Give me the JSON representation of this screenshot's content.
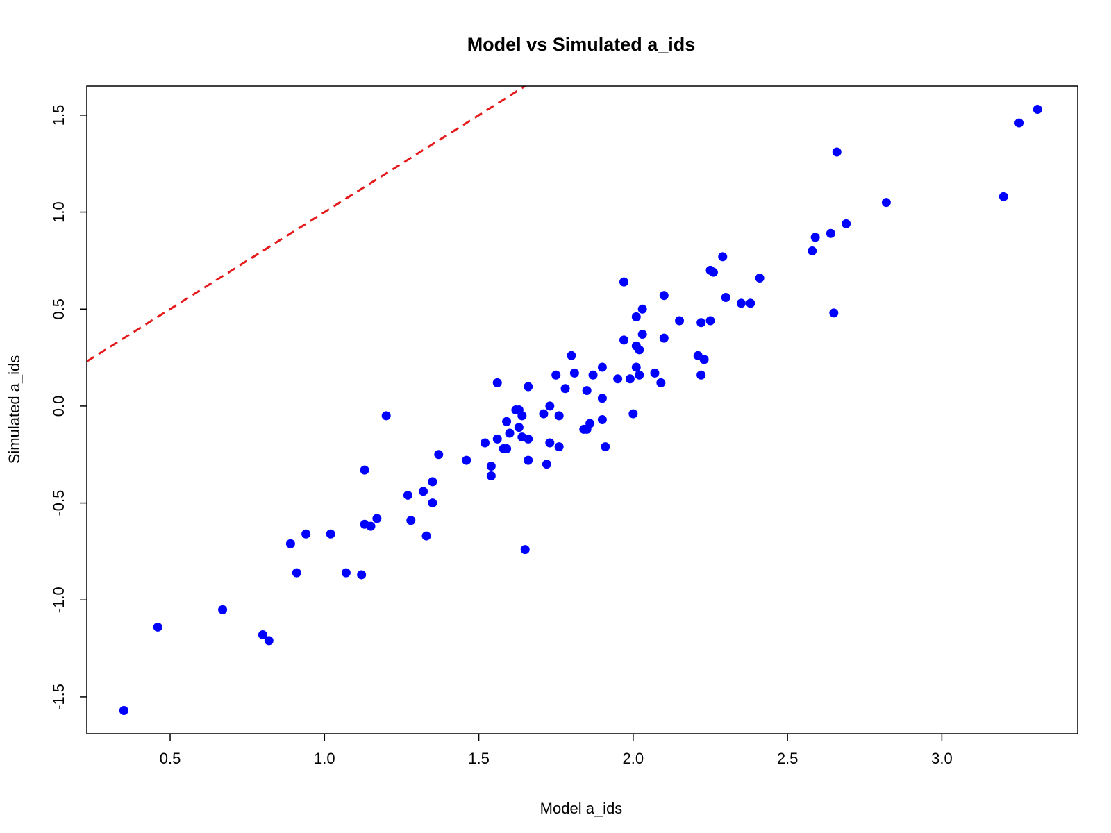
{
  "chart_data": {
    "type": "scatter",
    "title": "Model vs Simulated a_ids",
    "xlabel": "Model a_ids",
    "ylabel": "Simulated a_ids",
    "xlim": [
      0.23,
      3.44
    ],
    "ylim": [
      -1.69,
      1.65
    ],
    "xticks": [
      0.5,
      1.0,
      1.5,
      2.0,
      2.5,
      3.0
    ],
    "yticks": [
      -1.5,
      -1.0,
      -0.5,
      0.0,
      0.5,
      1.0,
      1.5
    ],
    "xtick_labels": [
      "0.5",
      "1.0",
      "1.5",
      "2.0",
      "2.5",
      "3.0"
    ],
    "ytick_labels": [
      "-1.5",
      "-1.0",
      "-0.5",
      "0.0",
      "0.5",
      "1.0",
      "1.5"
    ],
    "grid": false,
    "point_color": "#0000ff",
    "reference_line": {
      "type": "identity",
      "slope": 1,
      "intercept": 0,
      "color": "#e41a1c",
      "style": "dashed"
    },
    "points": [
      [
        0.35,
        -1.57
      ],
      [
        0.46,
        -1.14
      ],
      [
        0.67,
        -1.05
      ],
      [
        0.8,
        -1.18
      ],
      [
        0.82,
        -1.21
      ],
      [
        0.89,
        -0.71
      ],
      [
        0.91,
        -0.86
      ],
      [
        0.94,
        -0.66
      ],
      [
        1.02,
        -0.66
      ],
      [
        1.07,
        -0.86
      ],
      [
        1.12,
        -0.87
      ],
      [
        1.13,
        -0.61
      ],
      [
        1.13,
        -0.33
      ],
      [
        1.15,
        -0.62
      ],
      [
        1.17,
        -0.58
      ],
      [
        1.2,
        -0.05
      ],
      [
        1.27,
        -0.46
      ],
      [
        1.28,
        -0.59
      ],
      [
        1.32,
        -0.44
      ],
      [
        1.33,
        -0.67
      ],
      [
        1.35,
        -0.5
      ],
      [
        1.35,
        -0.39
      ],
      [
        1.37,
        -0.25
      ],
      [
        1.46,
        -0.28
      ],
      [
        1.52,
        -0.19
      ],
      [
        1.54,
        -0.31
      ],
      [
        1.54,
        -0.36
      ],
      [
        1.56,
        -0.17
      ],
      [
        1.56,
        0.12
      ],
      [
        1.58,
        -0.22
      ],
      [
        1.59,
        -0.08
      ],
      [
        1.59,
        -0.22
      ],
      [
        1.6,
        -0.14
      ],
      [
        1.62,
        -0.02
      ],
      [
        1.63,
        -0.02
      ],
      [
        1.63,
        -0.11
      ],
      [
        1.64,
        -0.05
      ],
      [
        1.64,
        -0.16
      ],
      [
        1.65,
        -0.74
      ],
      [
        1.66,
        -0.17
      ],
      [
        1.66,
        -0.28
      ],
      [
        1.66,
        0.1
      ],
      [
        1.71,
        -0.04
      ],
      [
        1.72,
        -0.3
      ],
      [
        1.73,
        0.0
      ],
      [
        1.73,
        -0.19
      ],
      [
        1.75,
        0.16
      ],
      [
        1.76,
        -0.05
      ],
      [
        1.76,
        -0.21
      ],
      [
        1.78,
        0.09
      ],
      [
        1.8,
        0.26
      ],
      [
        1.81,
        0.17
      ],
      [
        1.84,
        -0.12
      ],
      [
        1.85,
        0.08
      ],
      [
        1.85,
        -0.12
      ],
      [
        1.86,
        -0.09
      ],
      [
        1.87,
        0.16
      ],
      [
        1.9,
        0.2
      ],
      [
        1.9,
        0.04
      ],
      [
        1.9,
        -0.07
      ],
      [
        1.91,
        -0.21
      ],
      [
        1.95,
        0.14
      ],
      [
        1.97,
        0.64
      ],
      [
        1.97,
        0.34
      ],
      [
        1.99,
        0.14
      ],
      [
        2.0,
        -0.04
      ],
      [
        2.01,
        0.46
      ],
      [
        2.01,
        0.31
      ],
      [
        2.01,
        0.2
      ],
      [
        2.02,
        0.29
      ],
      [
        2.02,
        0.16
      ],
      [
        2.03,
        0.5
      ],
      [
        2.03,
        0.37
      ],
      [
        2.07,
        0.17
      ],
      [
        2.09,
        0.12
      ],
      [
        2.1,
        0.57
      ],
      [
        2.1,
        0.35
      ],
      [
        2.15,
        0.44
      ],
      [
        2.21,
        0.26
      ],
      [
        2.22,
        0.43
      ],
      [
        2.22,
        0.16
      ],
      [
        2.23,
        0.24
      ],
      [
        2.25,
        0.44
      ],
      [
        2.25,
        0.7
      ],
      [
        2.26,
        0.69
      ],
      [
        2.29,
        0.77
      ],
      [
        2.3,
        0.56
      ],
      [
        2.35,
        0.53
      ],
      [
        2.38,
        0.53
      ],
      [
        2.41,
        0.66
      ],
      [
        2.58,
        0.8
      ],
      [
        2.59,
        0.87
      ],
      [
        2.64,
        0.89
      ],
      [
        2.65,
        0.48
      ],
      [
        2.66,
        1.31
      ],
      [
        2.69,
        0.94
      ],
      [
        2.82,
        1.05
      ],
      [
        3.2,
        1.08
      ],
      [
        3.25,
        1.46
      ],
      [
        3.31,
        1.53
      ]
    ]
  }
}
